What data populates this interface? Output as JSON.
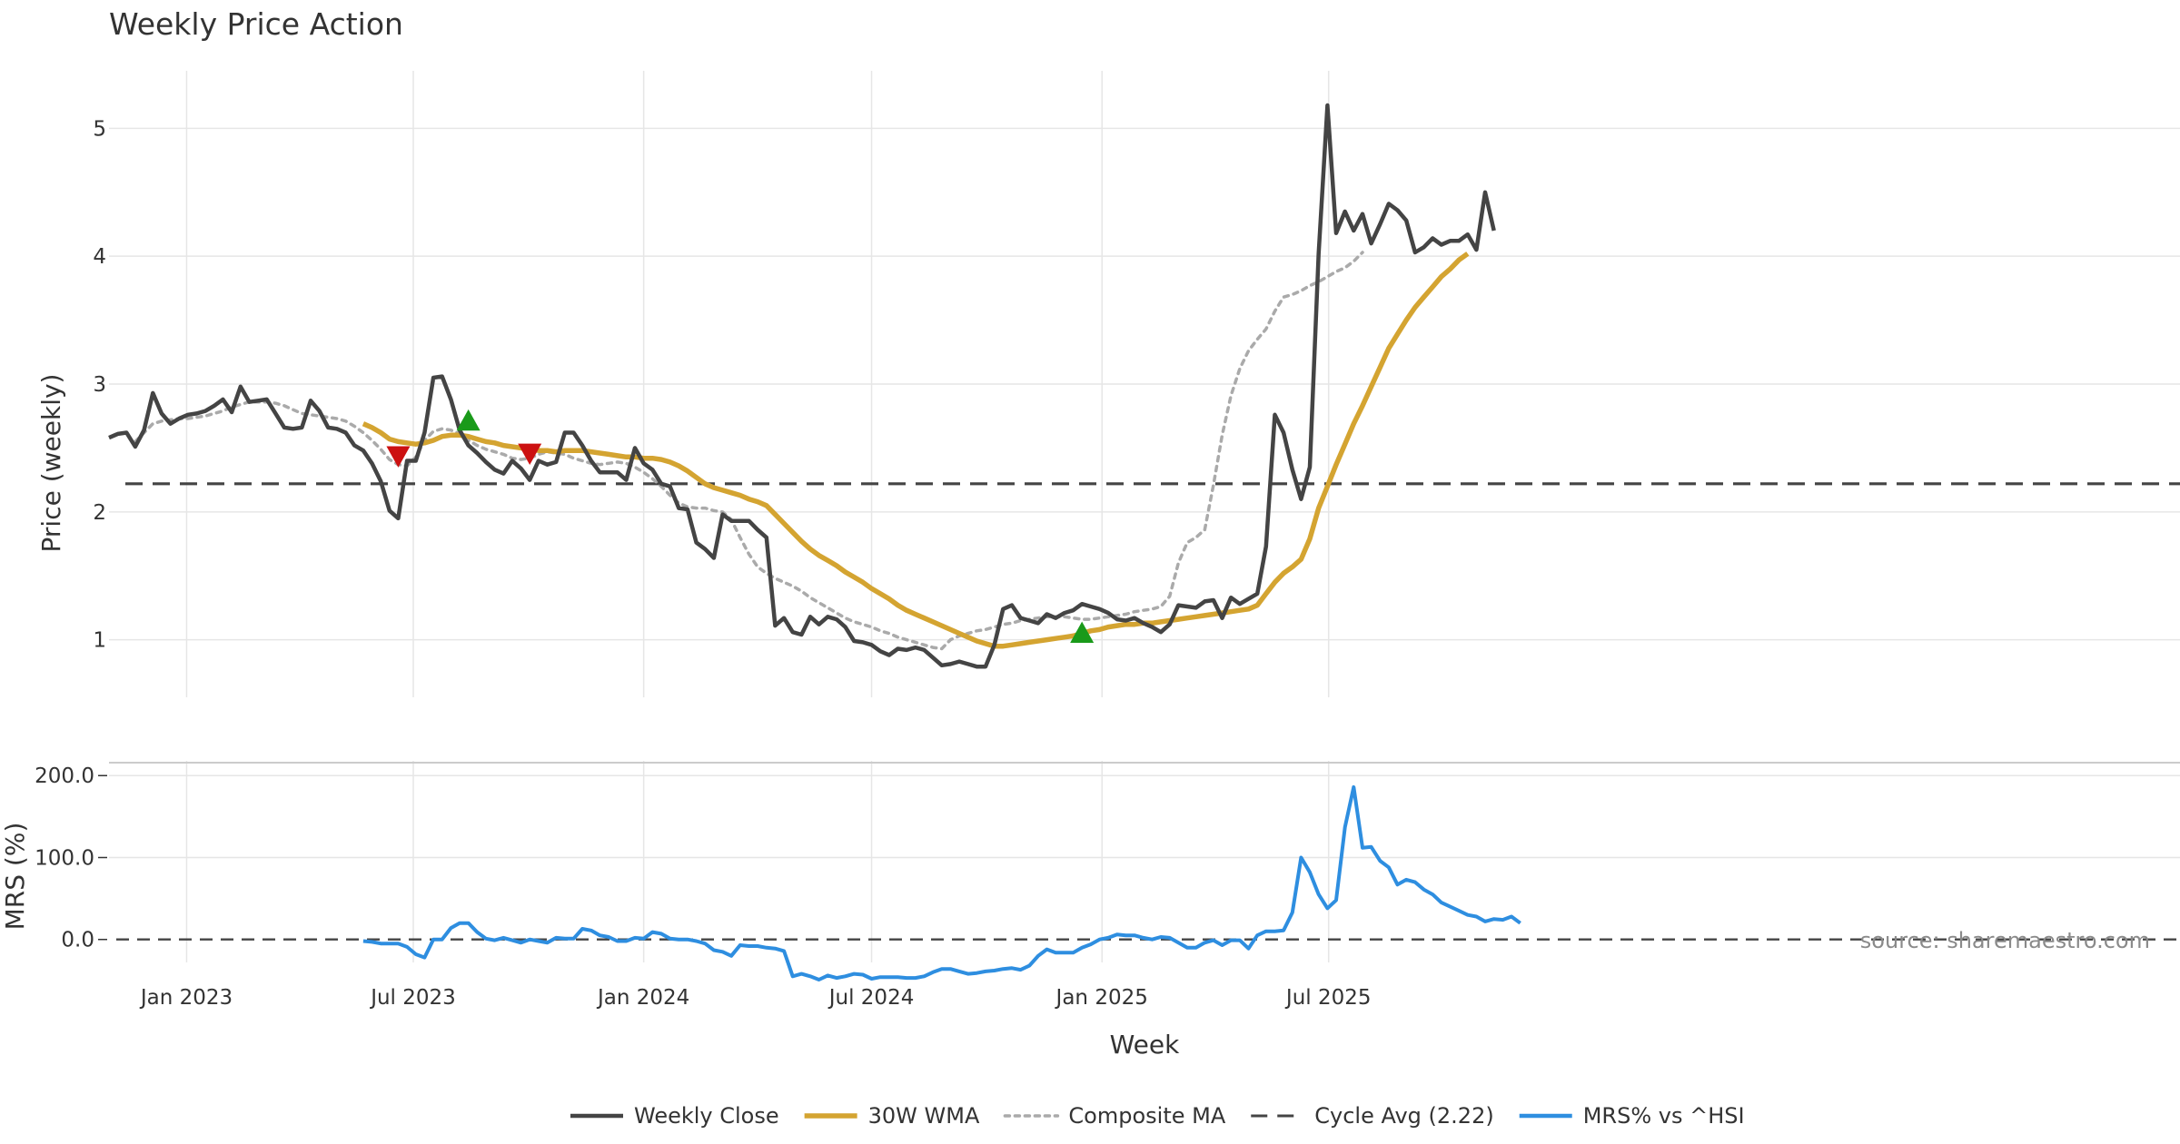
{
  "chart_data": {
    "type": "line",
    "title": "Weekly Price Action",
    "xlabel": "Week",
    "source": "source: sharemaestro.com",
    "x_start": "2022-10-31",
    "x_tick_dates": [
      "2023-01-01",
      "2023-07-01",
      "2024-01-01",
      "2024-07-01",
      "2025-01-01",
      "2025-07-01"
    ],
    "x_tick_labels": [
      "Jan 2023",
      "Jul 2023",
      "Jan 2024",
      "Jul 2024",
      "Jan 2025",
      "Jul 2025"
    ],
    "colors": {
      "close": "#444444",
      "wma": "#d4a431",
      "composite": "#aaaaaa",
      "cycle": "#444444",
      "mrs": "#2e8ee0",
      "buy": "#1a9a1a",
      "sell": "#cc1111"
    },
    "legend": [
      {
        "label": "Weekly Close",
        "key": "close",
        "style": "solid"
      },
      {
        "label": "30W WMA",
        "key": "wma",
        "style": "solid"
      },
      {
        "label": "Composite MA",
        "key": "composite",
        "style": "dotted"
      },
      {
        "label": "Cycle Avg (2.22)",
        "key": "cycle",
        "style": "dashed"
      },
      {
        "label": "MRS% vs ^HSI",
        "key": "mrs",
        "style": "solid"
      }
    ],
    "price_panel": {
      "ylabel": "Price (weekly)",
      "ylim": [
        0.55,
        5.45
      ],
      "yticks": [
        1,
        2,
        3,
        4,
        5
      ],
      "cycle_avg": 2.22,
      "series": [
        {
          "name": "Weekly Close",
          "key": "close",
          "start_index": 0,
          "values": [
            2.58,
            2.61,
            2.62,
            2.51,
            2.64,
            2.93,
            2.77,
            2.69,
            2.73,
            2.76,
            2.77,
            2.79,
            2.83,
            2.88,
            2.78,
            2.98,
            2.86,
            2.87,
            2.88,
            2.77,
            2.66,
            2.65,
            2.66,
            2.87,
            2.79,
            2.66,
            2.65,
            2.62,
            2.52,
            2.48,
            2.38,
            2.24,
            2.01,
            1.95,
            2.4,
            2.4,
            2.62,
            3.05,
            3.06,
            2.88,
            2.64,
            2.52,
            2.46,
            2.39,
            2.33,
            2.3,
            2.4,
            2.34,
            2.25,
            2.4,
            2.37,
            2.39,
            2.62,
            2.62,
            2.52,
            2.4,
            2.31,
            2.31,
            2.31,
            2.25,
            2.5,
            2.38,
            2.33,
            2.22,
            2.2,
            2.03,
            2.02,
            1.76,
            1.71,
            1.64,
            1.98,
            1.93,
            1.93,
            1.93,
            1.86,
            1.8,
            1.11,
            1.17,
            1.06,
            1.04,
            1.18,
            1.12,
            1.18,
            1.16,
            1.1,
            0.99,
            0.98,
            0.96,
            0.91,
            0.88,
            0.93,
            0.92,
            0.94,
            0.92,
            0.86,
            0.8,
            0.81,
            0.83,
            0.81,
            0.79,
            0.79,
            0.96,
            1.24,
            1.27,
            1.17,
            1.15,
            1.13,
            1.2,
            1.17,
            1.21,
            1.23,
            1.28,
            1.26,
            1.24,
            1.21,
            1.16,
            1.15,
            1.17,
            1.13,
            1.1,
            1.06,
            1.12,
            1.27,
            1.26,
            1.25,
            1.3,
            1.31,
            1.17,
            1.33,
            1.28,
            1.32,
            1.36,
            1.73,
            2.76,
            2.62,
            2.33,
            2.1,
            2.35,
            4.02,
            5.18,
            4.18,
            4.35,
            4.2,
            4.33,
            4.1,
            4.25,
            4.41,
            4.36,
            4.28,
            4.03,
            4.07,
            4.14,
            4.09,
            4.12,
            4.12,
            4.17,
            4.05,
            4.5,
            4.2
          ]
        },
        {
          "name": "30W WMA",
          "key": "wma",
          "start_index": 29,
          "values": [
            2.69,
            2.66,
            2.62,
            2.57,
            2.55,
            2.54,
            2.53,
            2.54,
            2.56,
            2.59,
            2.6,
            2.6,
            2.59,
            2.57,
            2.55,
            2.54,
            2.52,
            2.51,
            2.5,
            2.49,
            2.48,
            2.48,
            2.47,
            2.48,
            2.48,
            2.48,
            2.47,
            2.46,
            2.45,
            2.44,
            2.43,
            2.43,
            2.42,
            2.42,
            2.41,
            2.39,
            2.36,
            2.32,
            2.27,
            2.22,
            2.19,
            2.17,
            2.15,
            2.13,
            2.1,
            2.08,
            2.05,
            1.98,
            1.91,
            1.84,
            1.77,
            1.71,
            1.66,
            1.62,
            1.58,
            1.53,
            1.49,
            1.45,
            1.4,
            1.36,
            1.32,
            1.27,
            1.23,
            1.2,
            1.17,
            1.14,
            1.11,
            1.08,
            1.05,
            1.02,
            0.99,
            0.97,
            0.95,
            0.95,
            0.96,
            0.97,
            0.98,
            0.99,
            1.0,
            1.01,
            1.02,
            1.03,
            1.05,
            1.07,
            1.08,
            1.1,
            1.11,
            1.12,
            1.12,
            1.13,
            1.13,
            1.14,
            1.15,
            1.16,
            1.17,
            1.18,
            1.19,
            1.2,
            1.21,
            1.22,
            1.23,
            1.24,
            1.27,
            1.36,
            1.45,
            1.52,
            1.57,
            1.63,
            1.79,
            2.03,
            2.2,
            2.37,
            2.53,
            2.69,
            2.83,
            2.98,
            3.13,
            3.28,
            3.39,
            3.5,
            3.6,
            3.68,
            3.76,
            3.84,
            3.9,
            3.97,
            4.02
          ]
        },
        {
          "name": "Composite MA",
          "key": "composite",
          "start_index": 3,
          "values": [
            2.55,
            2.62,
            2.69,
            2.71,
            2.72,
            2.73,
            2.73,
            2.74,
            2.75,
            2.77,
            2.79,
            2.82,
            2.84,
            2.86,
            2.86,
            2.86,
            2.85,
            2.83,
            2.8,
            2.77,
            2.76,
            2.75,
            2.74,
            2.73,
            2.71,
            2.67,
            2.62,
            2.56,
            2.49,
            2.41,
            2.37,
            2.36,
            2.43,
            2.56,
            2.63,
            2.65,
            2.64,
            2.61,
            2.56,
            2.52,
            2.49,
            2.47,
            2.45,
            2.42,
            2.41,
            2.42,
            2.45,
            2.47,
            2.46,
            2.45,
            2.42,
            2.4,
            2.38,
            2.37,
            2.38,
            2.39,
            2.38,
            2.35,
            2.31,
            2.26,
            2.2,
            2.13,
            2.07,
            2.04,
            2.03,
            2.03,
            2.01,
            2.0,
            1.94,
            1.8,
            1.67,
            1.57,
            1.52,
            1.48,
            1.45,
            1.42,
            1.38,
            1.33,
            1.29,
            1.25,
            1.21,
            1.17,
            1.14,
            1.12,
            1.1,
            1.07,
            1.05,
            1.02,
            1.0,
            0.98,
            0.96,
            0.94,
            0.93,
            1.0,
            1.03,
            1.05,
            1.07,
            1.08,
            1.1,
            1.12,
            1.13,
            1.15,
            1.16,
            1.17,
            1.18,
            1.18,
            1.18,
            1.17,
            1.16,
            1.16,
            1.17,
            1.18,
            1.19,
            1.2,
            1.22,
            1.23,
            1.24,
            1.26,
            1.34,
            1.6,
            1.76,
            1.8,
            1.86,
            2.21,
            2.6,
            2.91,
            3.12,
            3.26,
            3.35,
            3.43,
            3.57,
            3.68,
            3.7,
            3.73,
            3.77,
            3.8,
            3.84,
            3.88,
            3.91,
            3.96,
            4.03
          ]
        }
      ],
      "markers": [
        {
          "type": "sell",
          "index": 33,
          "value": 2.44
        },
        {
          "type": "buy",
          "index": 41,
          "value": 2.71
        },
        {
          "type": "sell",
          "index": 48,
          "value": 2.46
        },
        {
          "type": "buy",
          "index": 111,
          "value": 1.05
        }
      ]
    },
    "mrs_panel": {
      "ylabel": "MRS (%)",
      "ylim": [
        -28,
        218
      ],
      "yticks": [
        0,
        100,
        200
      ],
      "ytick_labels": [
        "0.0",
        "100.0",
        "200.0"
      ],
      "zero_line": 0,
      "series": {
        "name": "MRS% vs ^HSI",
        "key": "mrs",
        "start_index": 29,
        "values": [
          -2,
          -3,
          -5,
          -5,
          -5,
          -9,
          -18,
          -22,
          0,
          0,
          14,
          20,
          20,
          9,
          1,
          -1,
          2,
          -1,
          -4,
          0,
          -2,
          -4,
          2,
          1,
          1,
          13,
          11,
          5,
          3,
          -2,
          -2,
          2,
          1,
          9,
          7,
          1,
          0,
          0,
          -2,
          -5,
          -13,
          -15,
          -20,
          -7,
          -8,
          -8,
          -10,
          -11,
          -14,
          -45,
          -42,
          -45,
          -49,
          -44,
          -47,
          -45,
          -42,
          -43,
          -48,
          -46,
          -46,
          -46,
          -47,
          -47,
          -45,
          -40,
          -36,
          -36,
          -39,
          -42,
          -41,
          -39,
          -38,
          -36,
          -35,
          -37,
          -32,
          -20,
          -12,
          -16,
          -16,
          -16,
          -10,
          -6,
          0,
          2,
          6,
          5,
          5,
          2,
          0,
          3,
          2,
          -4,
          -10,
          -10,
          -4,
          -1,
          -7,
          -1,
          -1,
          -11,
          5,
          10,
          10,
          11,
          33,
          100,
          82,
          55,
          38,
          48,
          137,
          186,
          112,
          113,
          96,
          88,
          67,
          73,
          70,
          61,
          55,
          45,
          40,
          35,
          30,
          28,
          22,
          25,
          24,
          28,
          20
        ]
      }
    }
  }
}
